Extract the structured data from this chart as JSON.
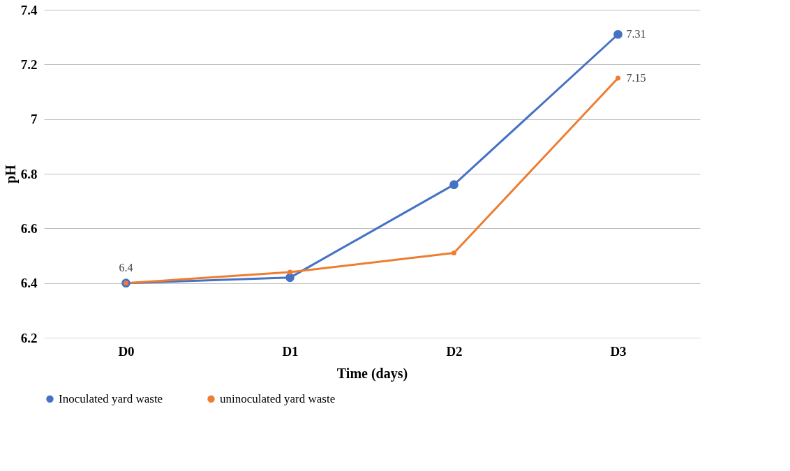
{
  "chart_data": {
    "type": "line",
    "xlabel": "Time (days)",
    "ylabel": "pH",
    "categories": [
      "D0",
      "D1",
      "D2",
      "D3"
    ],
    "series": [
      {
        "name": "Inoculated yard waste",
        "color": "#4472c4",
        "values": [
          6.4,
          6.42,
          6.76,
          7.31
        ],
        "value_labels": [
          null,
          null,
          null,
          "7.31"
        ]
      },
      {
        "name": "uninoculated yard waste",
        "color": "#ed7d31",
        "values": [
          6.4,
          6.44,
          6.51,
          7.15
        ],
        "value_labels": [
          "6.4",
          null,
          null,
          "7.15"
        ]
      }
    ],
    "ylim": [
      6.2,
      7.4
    ],
    "yticks": [
      6.2,
      6.4,
      6.6,
      6.8,
      7,
      7.2,
      7.4
    ],
    "grid": "y",
    "legend": "bottom",
    "marker": "circle",
    "line_style": "solid"
  }
}
